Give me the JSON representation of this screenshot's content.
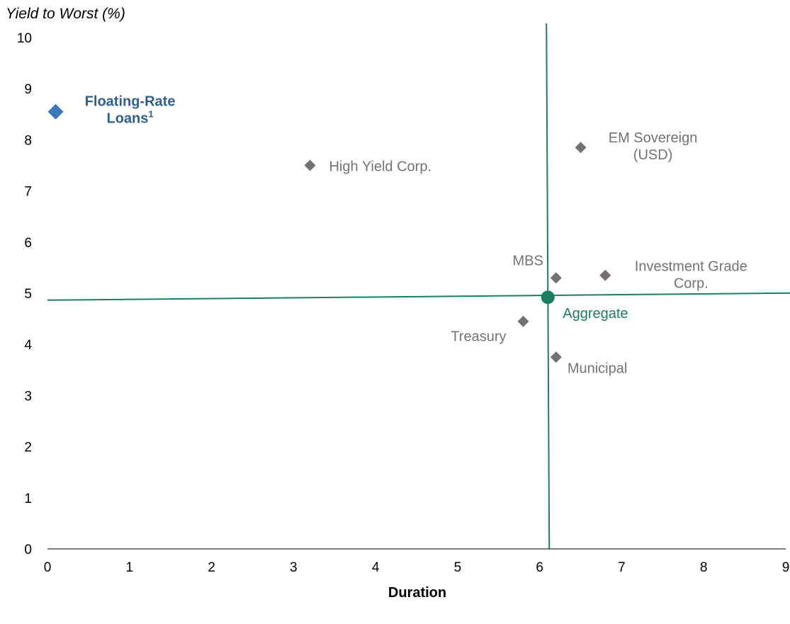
{
  "chart_data": {
    "type": "scatter",
    "ylabel": "Yield to Worst (%)",
    "xlabel": "Duration",
    "xlim": [
      0,
      9
    ],
    "ylim": [
      0,
      10
    ],
    "xticks": [
      "0",
      "1",
      "2",
      "3",
      "4",
      "5",
      "6",
      "7",
      "8",
      "9"
    ],
    "yticks": [
      "0",
      "1",
      "2",
      "3",
      "4",
      "5",
      "6",
      "7",
      "8",
      "9",
      "10"
    ],
    "grid": false,
    "points": [
      {
        "label": "Floating-Rate Loans",
        "sup": "1",
        "x": 0.1,
        "y": 8.55,
        "marker": "diamond",
        "color": "#3a78c0",
        "label_color": "#2e5f93",
        "emphasis": true
      },
      {
        "label": "High Yield Corp.",
        "x": 3.2,
        "y": 7.5,
        "marker": "diamond",
        "color": "#767171",
        "label_color": "#767171"
      },
      {
        "label": "EM Sovereign (USD)",
        "x": 6.5,
        "y": 7.85,
        "marker": "diamond",
        "color": "#767171",
        "label_color": "#767171"
      },
      {
        "label": "MBS",
        "x": 6.2,
        "y": 5.3,
        "marker": "diamond",
        "color": "#767171",
        "label_color": "#767171"
      },
      {
        "label": "Investment Grade Corp.",
        "x": 6.8,
        "y": 5.35,
        "marker": "diamond",
        "color": "#767171",
        "label_color": "#767171"
      },
      {
        "label": "Treasury",
        "x": 5.8,
        "y": 4.45,
        "marker": "diamond",
        "color": "#767171",
        "label_color": "#767171"
      },
      {
        "label": "Municipal",
        "x": 6.2,
        "y": 3.75,
        "marker": "diamond",
        "color": "#767171",
        "label_color": "#767171"
      },
      {
        "label": "Aggregate",
        "x": 6.1,
        "y": 4.92,
        "marker": "circle",
        "color": "#1a7f5a",
        "label_color": "#1a7f5a"
      }
    ],
    "reference_lines": {
      "x": 6.1,
      "y": 4.92,
      "color": "#1a7f5a"
    }
  }
}
